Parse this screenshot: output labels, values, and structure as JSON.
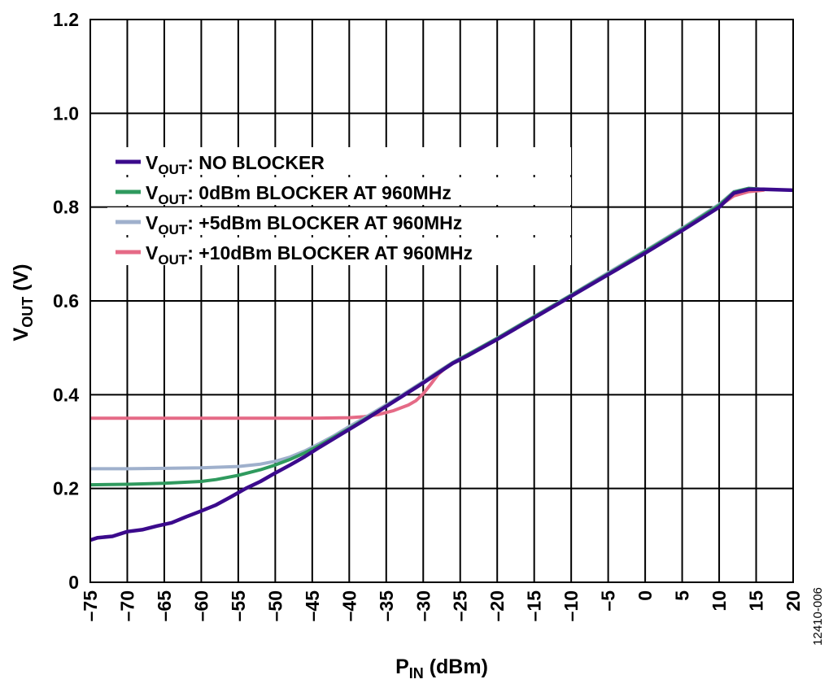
{
  "figure_id": "12410-006",
  "colors": {
    "no_blocker": "#3b0a8c",
    "blocker_0dbm": "#2f9a5e",
    "blocker_5dbm": "#9fb0cc",
    "blocker_10dbm": "#e56a86",
    "grid": "#000000"
  },
  "chart_data": {
    "type": "line",
    "xlabel": {
      "main": "P",
      "sub": "IN",
      "tail": " (dBm)"
    },
    "ylabel": {
      "main": "V",
      "sub": "OUT",
      "tail": " (V)"
    },
    "xlim": [
      -75,
      20
    ],
    "ylim": [
      0,
      1.2
    ],
    "grid": true,
    "legend_position": "top-left",
    "x_ticks": [
      -75,
      -70,
      -65,
      -60,
      -55,
      -50,
      -45,
      -40,
      -35,
      -30,
      -25,
      -20,
      -15,
      -10,
      -5,
      0,
      5,
      10,
      15,
      20
    ],
    "x_tick_labels": [
      "–75",
      "–70",
      "–65",
      "–60",
      "–55",
      "–50",
      "–45",
      "–40",
      "–35",
      "–30",
      "–25",
      "–20",
      "–15",
      "–10",
      "–5",
      "0",
      "5",
      "10",
      "15",
      "20"
    ],
    "y_ticks": [
      0,
      0.2,
      0.4,
      0.6,
      0.8,
      1.0,
      1.2
    ],
    "y_tick_labels": [
      "0",
      "0.2",
      "0.4",
      "0.6",
      "0.8",
      "1.0",
      "1.2"
    ],
    "series": [
      {
        "name": "V_OUT: NO BLOCKER",
        "legend": {
          "main": "V",
          "sub": "OUT",
          "tail": ": NO BLOCKER"
        },
        "color_key": "no_blocker",
        "x": [
          -75,
          -74,
          -72,
          -70,
          -68,
          -66,
          -64,
          -62,
          -60,
          -58,
          -56,
          -54,
          -52,
          -50,
          -48,
          -46,
          -44,
          -42,
          -40,
          -38,
          -36,
          -34,
          -32,
          -30,
          -28,
          -26,
          -24,
          -20,
          -15,
          -10,
          -5,
          0,
          5,
          10,
          12,
          14,
          16,
          20
        ],
        "y": [
          0.09,
          0.095,
          0.098,
          0.108,
          0.112,
          0.12,
          0.127,
          0.14,
          0.152,
          0.165,
          0.182,
          0.2,
          0.215,
          0.233,
          0.25,
          0.268,
          0.288,
          0.307,
          0.326,
          0.345,
          0.365,
          0.385,
          0.405,
          0.425,
          0.446,
          0.467,
          0.483,
          0.518,
          0.564,
          0.61,
          0.656,
          0.702,
          0.75,
          0.8,
          0.83,
          0.838,
          0.838,
          0.836
        ]
      },
      {
        "name": "V_OUT: 0dBm BLOCKER AT 960MHz",
        "legend": {
          "main": "V",
          "sub": "OUT",
          "tail": ": 0dBm BLOCKER AT 960MHz"
        },
        "color_key": "blocker_0dbm",
        "x": [
          -75,
          -70,
          -65,
          -60,
          -58,
          -55,
          -52,
          -50,
          -48,
          -46,
          -44,
          -42,
          -40,
          -38,
          -36,
          -34,
          -32,
          -30,
          -28,
          -26,
          -24,
          -20,
          -15,
          -10,
          -5,
          0,
          5,
          10,
          12,
          14,
          16
        ],
        "y": [
          0.208,
          0.209,
          0.211,
          0.215,
          0.219,
          0.228,
          0.24,
          0.25,
          0.262,
          0.276,
          0.292,
          0.31,
          0.328,
          0.347,
          0.366,
          0.386,
          0.406,
          0.426,
          0.447,
          0.468,
          0.485,
          0.52,
          0.566,
          0.612,
          0.658,
          0.705,
          0.753,
          0.804,
          0.832,
          0.84,
          0.838
        ]
      },
      {
        "name": "V_OUT: +5dBm BLOCKER AT 960MHz",
        "legend": {
          "main": "V",
          "sub": "OUT",
          "tail": ": +5dBm BLOCKER AT 960MHz"
        },
        "color_key": "blocker_5dbm",
        "x": [
          -75,
          -70,
          -65,
          -60,
          -55,
          -52,
          -50,
          -48,
          -46,
          -44,
          -42,
          -40,
          -38,
          -36,
          -34,
          -32,
          -30,
          -28,
          -26,
          -24,
          -20,
          -15,
          -10,
          -5,
          0,
          5,
          10,
          12,
          14,
          16
        ],
        "y": [
          0.242,
          0.242,
          0.243,
          0.244,
          0.247,
          0.252,
          0.258,
          0.267,
          0.28,
          0.296,
          0.313,
          0.332,
          0.35,
          0.369,
          0.388,
          0.408,
          0.428,
          0.449,
          0.469,
          0.486,
          0.521,
          0.567,
          0.613,
          0.66,
          0.707,
          0.755,
          0.806,
          0.833,
          0.84,
          0.838
        ]
      },
      {
        "name": "V_OUT: +10dBm BLOCKER AT 960MHz",
        "legend": {
          "main": "V",
          "sub": "OUT",
          "tail": ": +10dBm BLOCKER AT 960MHz"
        },
        "color_key": "blocker_10dbm",
        "x": [
          -75,
          -70,
          -65,
          -60,
          -55,
          -50,
          -45,
          -40,
          -38,
          -36,
          -34,
          -32,
          -31,
          -30,
          -29,
          -28,
          -27,
          -26,
          -24,
          -20,
          -15,
          -10,
          -5,
          0,
          5,
          10,
          12,
          14,
          16
        ],
        "y": [
          0.35,
          0.35,
          0.35,
          0.35,
          0.35,
          0.35,
          0.35,
          0.351,
          0.353,
          0.358,
          0.366,
          0.378,
          0.387,
          0.402,
          0.422,
          0.443,
          0.457,
          0.467,
          0.484,
          0.52,
          0.566,
          0.612,
          0.658,
          0.705,
          0.752,
          0.802,
          0.824,
          0.833,
          0.836
        ]
      }
    ]
  }
}
